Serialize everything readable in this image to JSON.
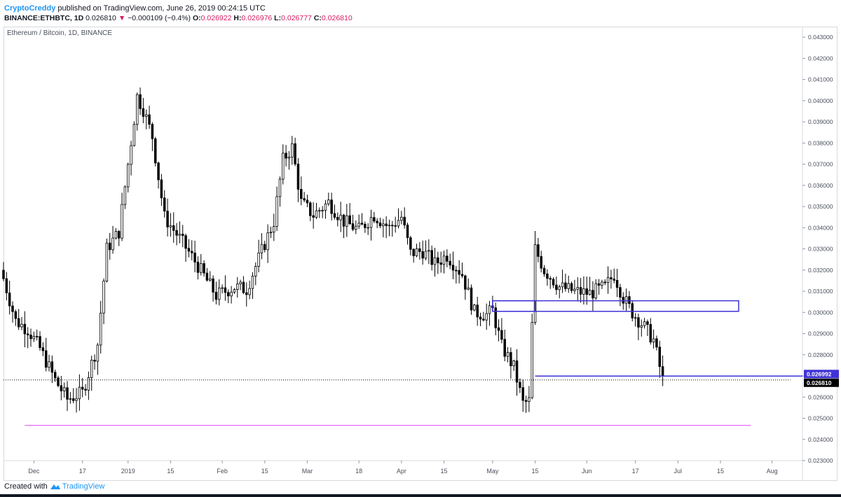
{
  "header": {
    "author": "CryptoCreddy",
    "published_text": "published on TradingView.com, June 26, 2019 00:24:15 UTC",
    "symbol": "BINANCE:ETHBTC, 1D",
    "last": "0.026810",
    "change": "−0.000109 (−0.4%)",
    "o_label": "O:",
    "o_value": "0.026922",
    "h_label": "H:",
    "h_value": "0.026976",
    "l_label": "L:",
    "l_value": "0.026777",
    "c_label": "C:",
    "c_value": "0.026810"
  },
  "legend": "Ethereum / Bitcoin, 1D, BINANCE",
  "footer": {
    "created_with": "Created with",
    "brand": "TradingView"
  },
  "colors": {
    "candle": "#000000",
    "box": "#3f33d6",
    "support_line": "#e040fb",
    "price_line": "#000000",
    "label_blue": "#3f33d6",
    "label_black": "#000000"
  },
  "chart_data": {
    "type": "candlestick",
    "title": "Ethereum / Bitcoin, 1D, BINANCE",
    "ylim": [
      0.023,
      0.0435
    ],
    "y_ticks": [
      "0.043000",
      "0.042000",
      "0.041000",
      "0.040000",
      "0.039000",
      "0.038000",
      "0.037000",
      "0.036000",
      "0.035000",
      "0.034000",
      "0.033000",
      "0.032000",
      "0.031000",
      "0.030000",
      "0.029000",
      "0.028000",
      "0.027000",
      "0.026000",
      "0.025000",
      "0.024000",
      "0.023000"
    ],
    "x_ticks": [
      {
        "label": "Dec",
        "date": "2018-12-01"
      },
      {
        "label": "17",
        "date": "2018-12-17"
      },
      {
        "label": "2019",
        "date": "2019-01-01"
      },
      {
        "label": "15",
        "date": "2019-01-15"
      },
      {
        "label": "Feb",
        "date": "2019-02-01"
      },
      {
        "label": "15",
        "date": "2019-02-15"
      },
      {
        "label": "Mar",
        "date": "2019-03-01"
      },
      {
        "label": "18",
        "date": "2019-03-18"
      },
      {
        "label": "Apr",
        "date": "2019-04-01"
      },
      {
        "label": "15",
        "date": "2019-04-15"
      },
      {
        "label": "May",
        "date": "2019-05-01"
      },
      {
        "label": "15",
        "date": "2019-05-15"
      },
      {
        "label": "Jun",
        "date": "2019-06-01"
      },
      {
        "label": "17",
        "date": "2019-06-17"
      },
      {
        "label": "Jul",
        "date": "2019-07-01"
      },
      {
        "label": "15",
        "date": "2019-07-15"
      },
      {
        "label": "Aug",
        "date": "2019-08-01"
      }
    ],
    "price_path": [
      [
        "2018-11-21",
        0.0316
      ],
      [
        "2018-11-25",
        0.0296
      ],
      [
        "2018-11-29",
        0.0292
      ],
      [
        "2018-12-03",
        0.0283
      ],
      [
        "2018-12-08",
        0.0268
      ],
      [
        "2018-12-12",
        0.0259
      ],
      [
        "2018-12-17",
        0.0262
      ],
      [
        "2018-12-22",
        0.0285
      ],
      [
        "2018-12-25",
        0.033
      ],
      [
        "2018-12-29",
        0.0338
      ],
      [
        "2019-01-01",
        0.037
      ],
      [
        "2019-01-04",
        0.0402
      ],
      [
        "2019-01-06",
        0.0396
      ],
      [
        "2019-01-09",
        0.0383
      ],
      [
        "2019-01-13",
        0.0345
      ],
      [
        "2019-01-18",
        0.0335
      ],
      [
        "2019-01-24",
        0.0322
      ],
      [
        "2019-01-30",
        0.0308
      ],
      [
        "2019-02-05",
        0.0312
      ],
      [
        "2019-02-09",
        0.0311
      ],
      [
        "2019-02-14",
        0.0329
      ],
      [
        "2019-02-18",
        0.0343
      ],
      [
        "2019-02-21",
        0.0372
      ],
      [
        "2019-02-24",
        0.0378
      ],
      [
        "2019-02-27",
        0.0352
      ],
      [
        "2019-03-03",
        0.0346
      ],
      [
        "2019-03-08",
        0.0352
      ],
      [
        "2019-03-13",
        0.0343
      ],
      [
        "2019-03-18",
        0.0339
      ],
      [
        "2019-03-23",
        0.0346
      ],
      [
        "2019-03-28",
        0.034
      ],
      [
        "2019-04-01",
        0.0345
      ],
      [
        "2019-04-04",
        0.0328
      ],
      [
        "2019-04-08",
        0.0329
      ],
      [
        "2019-04-12",
        0.0323
      ],
      [
        "2019-04-16",
        0.0327
      ],
      [
        "2019-04-21",
        0.0318
      ],
      [
        "2019-04-25",
        0.03
      ],
      [
        "2019-04-29",
        0.0299
      ],
      [
        "2019-05-01",
        0.0301
      ],
      [
        "2019-05-04",
        0.0284
      ],
      [
        "2019-05-08",
        0.0274
      ],
      [
        "2019-05-11",
        0.0257
      ],
      [
        "2019-05-13",
        0.0258
      ],
      [
        "2019-05-15",
        0.033
      ],
      [
        "2019-05-18",
        0.032
      ],
      [
        "2019-05-23",
        0.0312
      ],
      [
        "2019-05-28",
        0.031
      ],
      [
        "2019-06-02",
        0.0309
      ],
      [
        "2019-06-07",
        0.0312
      ],
      [
        "2019-06-10",
        0.0318
      ],
      [
        "2019-06-13",
        0.0307
      ],
      [
        "2019-06-16",
        0.03
      ],
      [
        "2019-06-20",
        0.0293
      ],
      [
        "2019-06-23",
        0.0287
      ],
      [
        "2019-06-26",
        0.0268
      ]
    ],
    "horizontal_lines": [
      {
        "value": 0.02466,
        "from": "2018-11-28",
        "to": "2019-07-25",
        "color": "#e040fb"
      },
      {
        "value": 0.02681,
        "from": "2018-11-21",
        "to": "2019-08-07",
        "style": "dotted",
        "color": "#000000"
      }
    ],
    "boxes": [
      {
        "top": 0.03055,
        "bottom": 0.03005,
        "from": "2019-05-01",
        "to": "2019-07-21",
        "color": "#3f33d6"
      },
      {
        "top": 0.03055,
        "bottom": 0.03005,
        "from": "2019-05-01",
        "to": "2019-05-15",
        "color": "#3f33d6",
        "note": "inner left box"
      }
    ],
    "ray": {
      "value": 0.026992,
      "from": "2019-05-15",
      "to": "2019-08-07",
      "color": "#3f33d6"
    },
    "price_labels": [
      {
        "text": "0.026992",
        "value": 0.026992,
        "bg": "#3f33d6"
      },
      {
        "text": "0.026810",
        "value": 0.02681,
        "bg": "#000000"
      }
    ]
  }
}
